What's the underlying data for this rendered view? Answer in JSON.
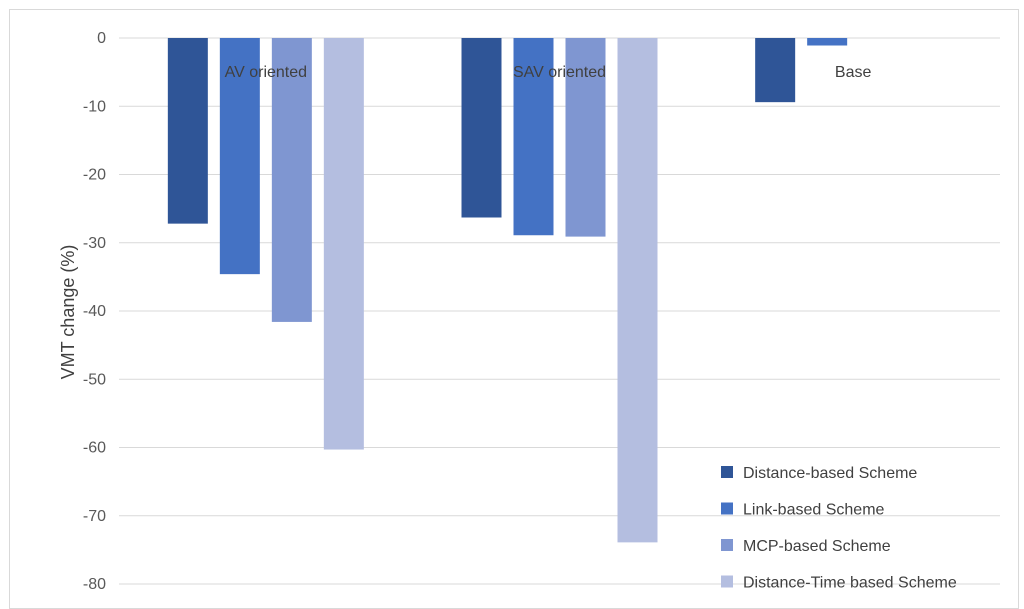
{
  "chart_data": {
    "type": "bar",
    "title": "",
    "xlabel": "",
    "ylabel": "VMT change (%)",
    "ylim": [
      -80,
      0
    ],
    "yticks": [
      0,
      -10,
      -20,
      -30,
      -40,
      -50,
      -60,
      -70,
      -80
    ],
    "grid": true,
    "legend_position": "bottom-right",
    "categories": [
      "AV oriented",
      "SAV oriented",
      "Base"
    ],
    "series": [
      {
        "name": "Distance-based Scheme",
        "color": "#2f5597",
        "values": [
          -27.2,
          -26.3,
          -9.4
        ]
      },
      {
        "name": "Link-based Scheme",
        "color": "#4472c4",
        "values": [
          -34.6,
          -28.9,
          -1.1
        ]
      },
      {
        "name": "MCP-based Scheme",
        "color": "#7f96d1",
        "values": [
          -41.6,
          -29.1,
          null
        ]
      },
      {
        "name": "Distance-Time based Scheme",
        "color": "#b4bee0",
        "values": [
          -60.3,
          -73.9,
          null
        ]
      }
    ]
  }
}
